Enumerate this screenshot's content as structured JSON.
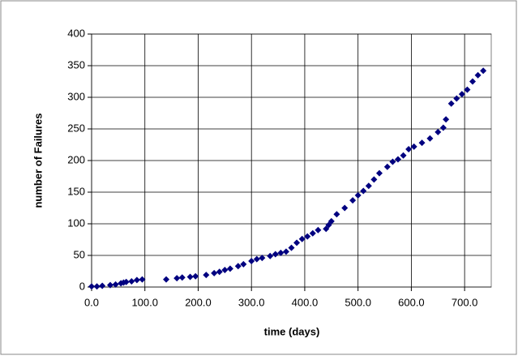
{
  "chart_data": {
    "type": "scatter",
    "xlabel": "time (days)",
    "ylabel": "number of Failures",
    "xlim": [
      0,
      750
    ],
    "ylim": [
      0,
      400
    ],
    "xticks": [
      {
        "value": 0,
        "label": "0.0"
      },
      {
        "value": 100,
        "label": "100.0"
      },
      {
        "value": 200,
        "label": "200.0"
      },
      {
        "value": 300,
        "label": "300.0"
      },
      {
        "value": 400,
        "label": "400.0"
      },
      {
        "value": 500,
        "label": "500.0"
      },
      {
        "value": 600,
        "label": "600.0"
      },
      {
        "value": 700,
        "label": "700.0"
      }
    ],
    "yticks": [
      0,
      50,
      100,
      150,
      200,
      250,
      300,
      350,
      400
    ],
    "grid": true,
    "series": [
      {
        "color": "#000080",
        "x": [
          0,
          10,
          20,
          35,
          45,
          55,
          60,
          65,
          75,
          85,
          95,
          140,
          160,
          170,
          185,
          195,
          215,
          230,
          240,
          250,
          260,
          275,
          285,
          300,
          310,
          320,
          335,
          345,
          355,
          365,
          375,
          385,
          395,
          405,
          415,
          425,
          440,
          445,
          450,
          460,
          475,
          490,
          500,
          510,
          520,
          530,
          540,
          555,
          565,
          575,
          585,
          595,
          605,
          620,
          635,
          650,
          660,
          665,
          675,
          685,
          695,
          705,
          715,
          725,
          735
        ],
        "values": [
          1,
          1,
          2,
          3,
          4,
          6,
          7,
          8,
          9,
          11,
          12,
          12,
          14,
          15,
          16,
          17,
          19,
          22,
          24,
          27,
          29,
          33,
          36,
          41,
          44,
          46,
          49,
          52,
          54,
          56,
          62,
          70,
          76,
          80,
          85,
          90,
          92,
          98,
          104,
          115,
          125,
          137,
          145,
          152,
          160,
          170,
          180,
          190,
          198,
          202,
          208,
          218,
          222,
          228,
          235,
          245,
          252,
          265,
          290,
          298,
          305,
          312,
          325,
          335,
          342
        ]
      }
    ]
  }
}
